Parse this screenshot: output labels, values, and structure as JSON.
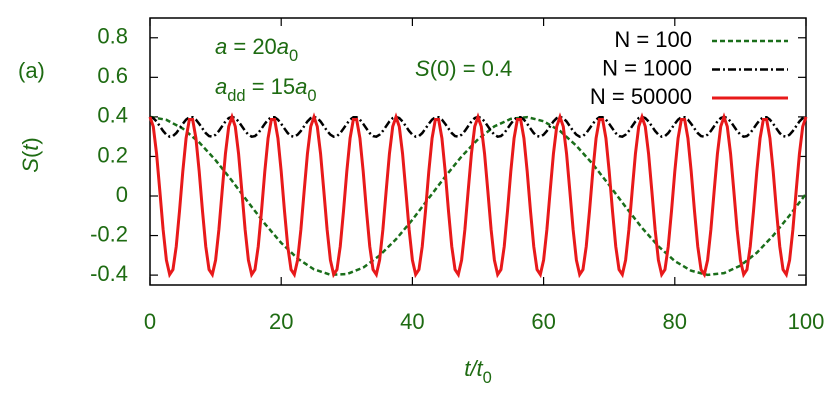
{
  "chart_data": {
    "type": "line",
    "panel_label": "(a)",
    "xlabel": [
      {
        "text": "t/t",
        "italic": true
      },
      {
        "text": "0",
        "sub": true
      }
    ],
    "ylabel": [
      {
        "text": "S",
        "italic": true
      },
      {
        "text": "("
      },
      {
        "text": "t",
        "italic": true
      },
      {
        "text": ")"
      }
    ],
    "annotations": [
      [
        {
          "text": "a",
          "italic": true
        },
        {
          "text": " = 20"
        },
        {
          "text": "a",
          "italic": true
        },
        {
          "text": "0",
          "sub": true
        }
      ],
      [
        {
          "text": "a",
          "italic": true
        },
        {
          "text": "dd",
          "sub": true
        },
        {
          "text": " = 15"
        },
        {
          "text": "a",
          "italic": true
        },
        {
          "text": "0",
          "sub": true
        }
      ],
      [
        {
          "text": "S",
          "italic": true
        },
        {
          "text": "(0) = 0.4"
        }
      ]
    ],
    "xlim": [
      0,
      100
    ],
    "xticks": [
      0,
      20,
      40,
      60,
      80,
      100
    ],
    "ylim": [
      -0.45,
      0.9
    ],
    "yticks": [
      {
        "value": -0.4,
        "label": "-0.4"
      },
      {
        "value": -0.2,
        "label": "-0.2"
      },
      0,
      {
        "value": 0.2,
        "label": "0.2"
      },
      {
        "value": 0.4,
        "label": "0.4"
      },
      {
        "value": 0.6,
        "label": "0.6"
      },
      {
        "value": 0.8,
        "label": "0.8"
      }
    ],
    "legend": "upper right",
    "x": [
      0,
      0.5,
      1,
      1.5,
      2,
      2.5,
      3,
      3.5,
      4,
      4.5,
      5,
      5.5,
      6,
      6.5,
      7,
      7.5,
      8,
      8.5,
      9,
      9.5,
      10,
      10.5,
      11,
      11.5,
      12,
      12.5,
      13,
      13.5,
      14,
      14.5,
      15,
      15.5,
      16,
      16.5,
      17,
      17.5,
      18,
      18.5,
      19,
      19.5,
      20,
      20.5,
      21,
      21.5,
      22,
      22.5,
      23,
      23.5,
      24,
      24.5,
      25,
      25.5,
      26,
      26.5,
      27,
      27.5,
      28,
      28.5,
      29,
      29.5,
      30,
      30.5,
      31,
      31.5,
      32,
      32.5,
      33,
      33.5,
      34,
      34.5,
      35,
      35.5,
      36,
      36.5,
      37,
      37.5,
      38,
      38.5,
      39,
      39.5,
      40,
      40.5,
      41,
      41.5,
      42,
      42.5,
      43,
      43.5,
      44,
      44.5,
      45,
      45.5,
      46,
      46.5,
      47,
      47.5,
      48,
      48.5,
      49,
      49.5,
      50,
      50.5,
      51,
      51.5,
      52,
      52.5,
      53,
      53.5,
      54,
      54.5,
      55,
      55.5,
      56,
      56.5,
      57,
      57.5,
      58,
      58.5,
      59,
      59.5,
      60,
      60.5,
      61,
      61.5,
      62,
      62.5,
      63,
      63.5,
      64,
      64.5,
      65,
      65.5,
      66,
      66.5,
      67,
      67.5,
      68,
      68.5,
      69,
      69.5,
      70,
      70.5,
      71,
      71.5,
      72,
      72.5,
      73,
      73.5,
      74,
      74.5,
      75,
      75.5,
      76,
      76.5,
      77,
      77.5,
      78,
      78.5,
      79,
      79.5,
      80,
      80.5,
      81,
      81.5,
      82,
      82.5,
      83,
      83.5,
      84,
      84.5,
      85,
      85.5,
      86,
      86.5,
      87,
      87.5,
      88,
      88.5,
      89,
      89.5,
      90,
      90.5,
      91,
      91.5,
      92,
      92.5,
      93,
      93.5,
      94,
      94.5,
      95,
      95.5,
      96,
      96.5,
      97,
      97.5,
      98,
      98.5,
      99,
      99.5,
      100
    ],
    "series": [
      {
        "name": "N = 100",
        "color": "#1a6e1a",
        "dash": "5,3",
        "x": [
          0,
          2.5,
          5,
          7.5,
          10,
          12.5,
          15,
          17.5,
          20,
          22.5,
          25,
          27.5,
          30,
          32.5,
          35,
          37.5,
          40,
          42.5,
          45,
          47.5,
          50,
          52.5,
          55,
          57.5,
          60,
          62.5,
          65,
          67.5,
          70,
          72.5,
          75,
          77.5,
          80,
          82.5,
          85,
          87.5,
          90,
          92.5,
          95,
          97.5,
          100
        ],
        "values": [
          0.4,
          0.385,
          0.341,
          0.271,
          0.181,
          0.077,
          -0.033,
          -0.14,
          -0.237,
          -0.316,
          -0.371,
          -0.398,
          -0.395,
          -0.362,
          -0.301,
          -0.219,
          -0.12,
          -0.011,
          0.098,
          0.2,
          0.287,
          0.352,
          0.39,
          0.399,
          0.378,
          0.329,
          0.254,
          0.161,
          0.055,
          -0.055,
          -0.161,
          -0.254,
          -0.329,
          -0.378,
          -0.399,
          -0.39,
          -0.352,
          -0.287,
          -0.2,
          -0.098,
          0.011
        ]
      },
      {
        "name": "N = 1000",
        "color": "#000000",
        "dash": "8,3,2,3",
        "values": [
          0.4,
          0.394,
          0.377,
          0.353,
          0.329,
          0.31,
          0.3,
          0.303,
          0.318,
          0.341,
          0.365,
          0.386,
          0.398,
          0.398,
          0.386,
          0.365,
          0.341,
          0.318,
          0.303,
          0.3,
          0.31,
          0.329,
          0.353,
          0.377,
          0.394,
          0.4,
          0.394,
          0.377,
          0.353,
          0.329,
          0.31,
          0.3,
          0.303,
          0.318,
          0.341,
          0.365,
          0.386,
          0.398,
          0.398,
          0.386,
          0.365,
          0.341,
          0.318,
          0.303,
          0.3,
          0.31,
          0.329,
          0.353,
          0.377,
          0.394,
          0.4,
          0.394,
          0.377,
          0.353,
          0.329,
          0.31,
          0.3,
          0.303,
          0.318,
          0.341,
          0.365,
          0.386,
          0.398,
          0.398,
          0.386,
          0.365,
          0.341,
          0.318,
          0.303,
          0.3,
          0.31,
          0.329,
          0.353,
          0.377,
          0.394,
          0.4,
          0.394,
          0.377,
          0.353,
          0.329,
          0.31,
          0.3,
          0.303,
          0.318,
          0.341,
          0.365,
          0.386,
          0.398,
          0.398,
          0.386,
          0.365,
          0.341,
          0.318,
          0.303,
          0.3,
          0.31,
          0.329,
          0.353,
          0.377,
          0.394,
          0.4,
          0.394,
          0.377,
          0.353,
          0.329,
          0.31,
          0.3,
          0.303,
          0.318,
          0.341,
          0.365,
          0.386,
          0.398,
          0.398,
          0.386,
          0.365,
          0.341,
          0.318,
          0.303,
          0.3,
          0.31,
          0.329,
          0.353,
          0.377,
          0.394,
          0.4,
          0.394,
          0.377,
          0.353,
          0.329,
          0.31,
          0.3,
          0.303,
          0.318,
          0.341,
          0.365,
          0.386,
          0.398,
          0.398,
          0.386,
          0.365,
          0.341,
          0.318,
          0.303,
          0.3,
          0.31,
          0.329,
          0.353,
          0.377,
          0.394,
          0.4,
          0.394,
          0.377,
          0.353,
          0.329,
          0.31,
          0.3,
          0.303,
          0.318,
          0.341,
          0.365,
          0.386,
          0.398,
          0.398,
          0.386,
          0.365,
          0.341,
          0.318,
          0.303,
          0.3,
          0.31,
          0.329,
          0.353,
          0.377,
          0.394,
          0.4,
          0.394,
          0.377,
          0.353,
          0.329,
          0.31,
          0.3,
          0.303,
          0.318,
          0.341,
          0.365,
          0.386,
          0.398,
          0.398,
          0.386,
          0.365,
          0.341,
          0.318,
          0.303,
          0.3,
          0.31,
          0.329,
          0.353,
          0.377,
          0.394,
          0.4
        ]
      },
      {
        "name": "N = 50000",
        "color": "#e8191a",
        "values": [
          0.4,
          0.351,
          0.214,
          0.025,
          -0.17,
          -0.324,
          -0.397,
          -0.372,
          -0.255,
          -0.075,
          0.124,
          0.292,
          0.387,
          0.387,
          0.292,
          0.124,
          -0.075,
          -0.255,
          -0.372,
          -0.397,
          -0.324,
          -0.17,
          0.025,
          0.214,
          0.351,
          0.4,
          0.351,
          0.214,
          0.025,
          -0.17,
          -0.324,
          -0.397,
          -0.372,
          -0.255,
          -0.075,
          0.124,
          0.292,
          0.387,
          0.387,
          0.292,
          0.124,
          -0.075,
          -0.255,
          -0.372,
          -0.397,
          -0.324,
          -0.17,
          0.025,
          0.214,
          0.351,
          0.4,
          0.351,
          0.214,
          0.025,
          -0.17,
          -0.324,
          -0.397,
          -0.372,
          -0.255,
          -0.075,
          0.124,
          0.292,
          0.387,
          0.387,
          0.292,
          0.124,
          -0.075,
          -0.255,
          -0.372,
          -0.397,
          -0.324,
          -0.17,
          0.025,
          0.214,
          0.351,
          0.4,
          0.351,
          0.214,
          0.025,
          -0.17,
          -0.324,
          -0.397,
          -0.372,
          -0.255,
          -0.075,
          0.124,
          0.292,
          0.387,
          0.387,
          0.292,
          0.124,
          -0.075,
          -0.255,
          -0.372,
          -0.397,
          -0.324,
          -0.17,
          0.025,
          0.214,
          0.351,
          0.4,
          0.351,
          0.214,
          0.025,
          -0.17,
          -0.324,
          -0.397,
          -0.372,
          -0.255,
          -0.075,
          0.124,
          0.292,
          0.387,
          0.387,
          0.292,
          0.124,
          -0.075,
          -0.255,
          -0.372,
          -0.397,
          -0.324,
          -0.17,
          0.025,
          0.214,
          0.351,
          0.4,
          0.351,
          0.214,
          0.025,
          -0.17,
          -0.324,
          -0.397,
          -0.372,
          -0.255,
          -0.075,
          0.124,
          0.292,
          0.387,
          0.387,
          0.292,
          0.124,
          -0.075,
          -0.255,
          -0.372,
          -0.397,
          -0.324,
          -0.17,
          0.025,
          0.214,
          0.351,
          0.4,
          0.351,
          0.214,
          0.025,
          -0.17,
          -0.324,
          -0.397,
          -0.372,
          -0.255,
          -0.075,
          0.124,
          0.292,
          0.387,
          0.387,
          0.292,
          0.124,
          -0.075,
          -0.255,
          -0.372,
          -0.397,
          -0.324,
          -0.17,
          0.025,
          0.214,
          0.351,
          0.4,
          0.351,
          0.214,
          0.025,
          -0.17,
          -0.324,
          -0.397,
          -0.372,
          -0.255,
          -0.075,
          0.124,
          0.292,
          0.387,
          0.387,
          0.292,
          0.124,
          -0.075,
          -0.255,
          -0.372,
          -0.397,
          -0.324,
          -0.17,
          0.025,
          0.214,
          0.351,
          0.4
        ]
      }
    ]
  }
}
